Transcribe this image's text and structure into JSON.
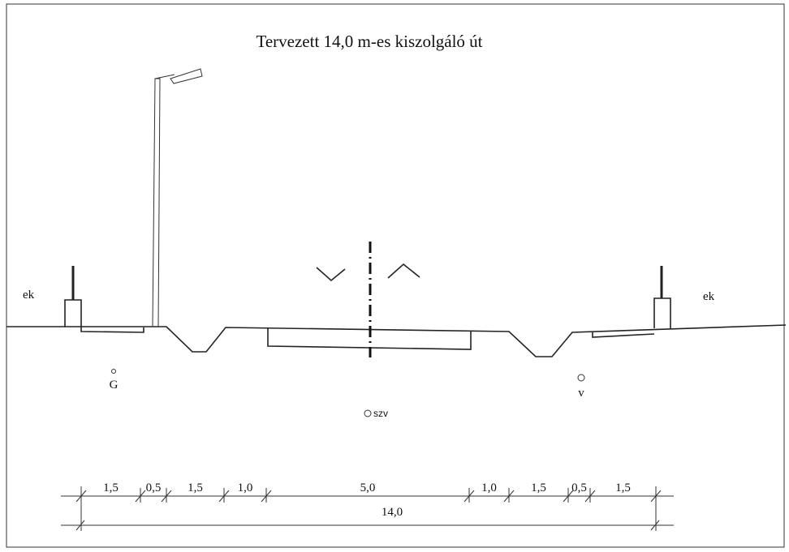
{
  "title": "Tervezett 14,0 m-es  kiszolgáló út",
  "labels": {
    "left_edge": "ek",
    "right_edge": "ek",
    "gas": "G",
    "water": "v",
    "sewer": "szv"
  },
  "dimensions": [
    "1,5",
    "0,5",
    "1,5",
    "1,0",
    "5,0",
    "1,0",
    "1,5",
    "0,5",
    "1,5"
  ],
  "total": "14,0"
}
